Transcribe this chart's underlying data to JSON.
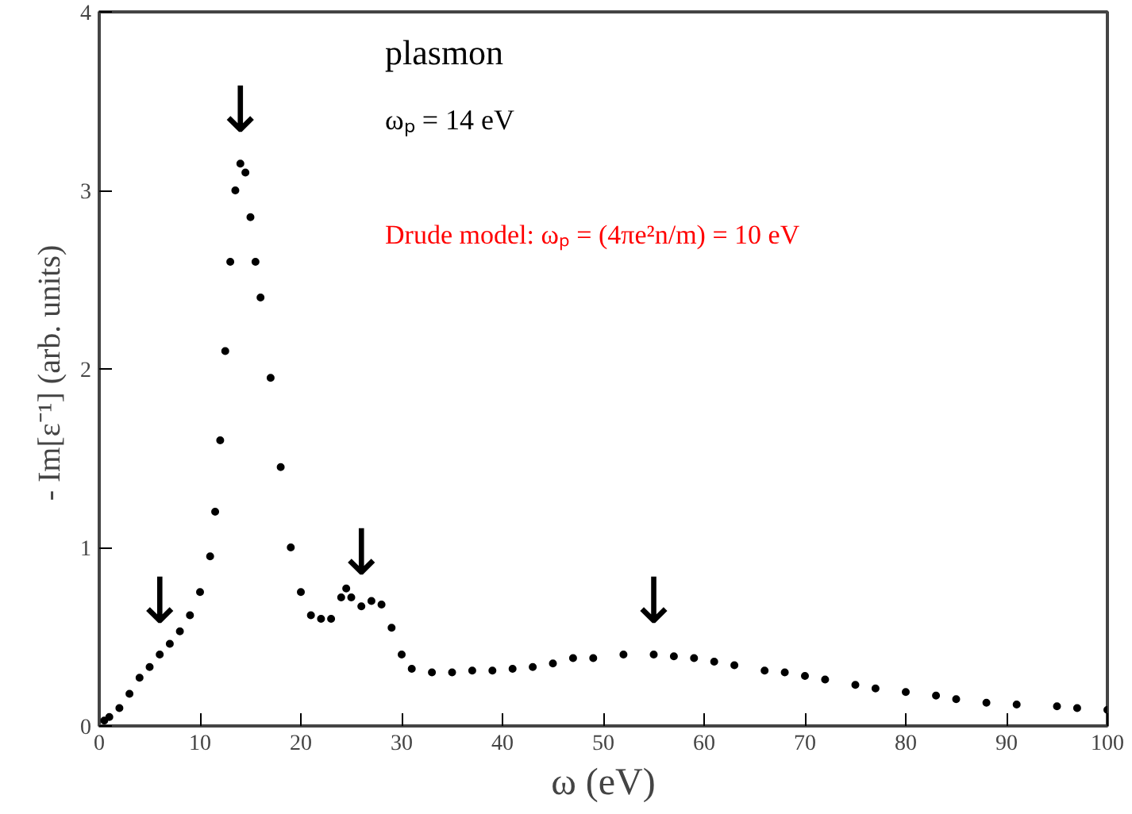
{
  "chart_data": {
    "type": "scatter",
    "xlabel": "ω (eV)",
    "ylabel": "- Im[ε⁻¹]  (arb. units)",
    "x": [
      0.5,
      1,
      2,
      3,
      4,
      5,
      6,
      7,
      8,
      9,
      10,
      11,
      11.5,
      12,
      12.5,
      13,
      13.5,
      14,
      14.5,
      15,
      15.5,
      16,
      17,
      18,
      19,
      20,
      21,
      22,
      23,
      24,
      24.5,
      25,
      26,
      27,
      28,
      29,
      30,
      31,
      33,
      35,
      37,
      39,
      41,
      43,
      45,
      47,
      49,
      52,
      55,
      57,
      59,
      61,
      63,
      66,
      68,
      70,
      72,
      75,
      77,
      80,
      83,
      85,
      88,
      91,
      95,
      97,
      100
    ],
    "series": [
      {
        "color": "#000000",
        "values": [
          0.03,
          0.05,
          0.1,
          0.18,
          0.27,
          0.33,
          0.4,
          0.46,
          0.53,
          0.62,
          0.75,
          0.95,
          1.2,
          1.6,
          2.1,
          2.6,
          3.0,
          3.15,
          3.1,
          2.85,
          2.6,
          2.4,
          1.95,
          1.45,
          1.0,
          0.75,
          0.62,
          0.6,
          0.6,
          0.72,
          0.77,
          0.72,
          0.67,
          0.7,
          0.68,
          0.55,
          0.4,
          0.32,
          0.3,
          0.3,
          0.31,
          0.31,
          0.32,
          0.33,
          0.35,
          0.38,
          0.38,
          0.4,
          0.4,
          0.39,
          0.38,
          0.36,
          0.34,
          0.31,
          0.3,
          0.28,
          0.26,
          0.23,
          0.21,
          0.19,
          0.17,
          0.15,
          0.13,
          0.12,
          0.11,
          0.1,
          0.09
        ]
      }
    ],
    "marker": "circle",
    "xlim": [
      0,
      100
    ],
    "xticks": [
      0,
      10,
      20,
      30,
      40,
      50,
      60,
      70,
      80,
      90,
      100
    ],
    "ylim": [
      0,
      4
    ],
    "yticks": [
      0,
      1,
      2,
      3,
      4
    ],
    "grid": false,
    "annotations": [
      {
        "text": "↓",
        "x": 6,
        "y": 0.4
      },
      {
        "text": "↓",
        "x": 14,
        "y": 3.15
      },
      {
        "text": "↓",
        "x": 26,
        "y": 0.67
      },
      {
        "text": "↓",
        "x": 55,
        "y": 0.4
      },
      "plasmon",
      "ωₚ = 14 eV",
      "Drude model: ωₚ = (4πe²n/m) = 10 eV"
    ]
  }
}
